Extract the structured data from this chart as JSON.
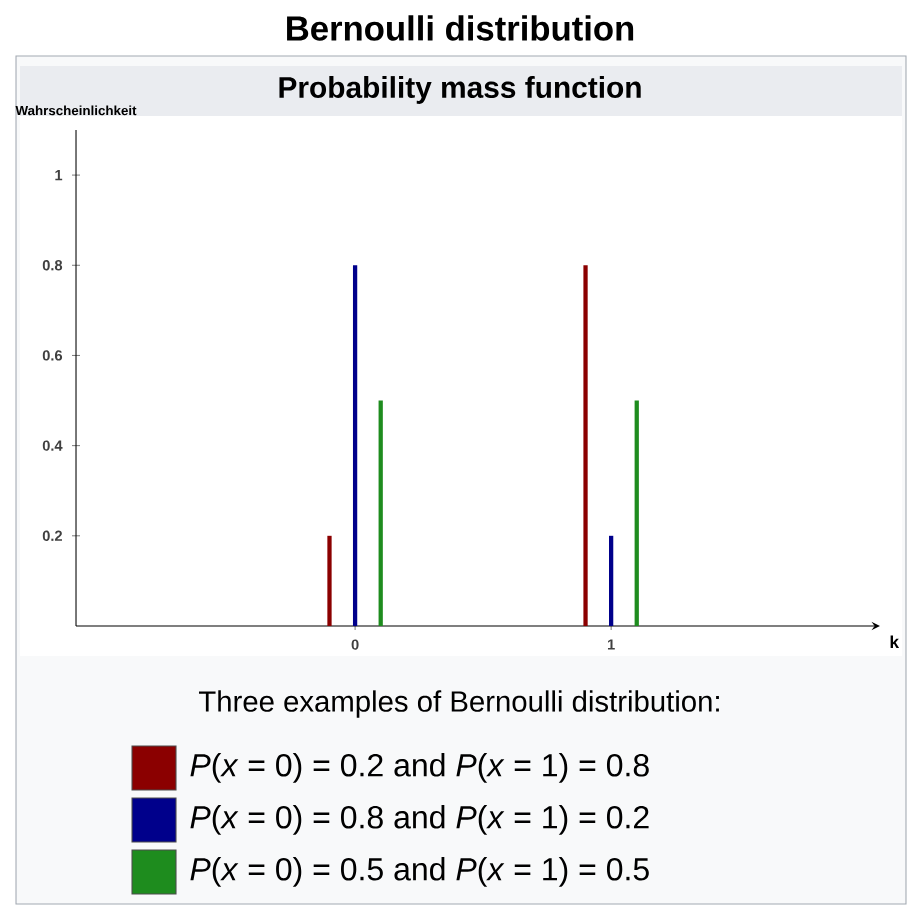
{
  "chart_data": {
    "type": "bar",
    "title": "Bernoulli distribution",
    "subtitle": "Probability mass function",
    "xlabel": "k",
    "ylabel": "Wahrscheinlichkeit",
    "legend_title": "Three examples of Bernoulli distribution:",
    "legend": "bottom",
    "xlim": [
      -1.09,
      2.05
    ],
    "ylim": [
      0,
      1.1
    ],
    "xticks": [
      0,
      1
    ],
    "yticks": [
      0.2,
      0.4,
      0.6,
      0.8,
      1
    ],
    "series": [
      {
        "name": "*P*(*x* = 0) = 0.2 and *P*(*x* = 1) = 0.8",
        "color": "#8b0000",
        "x": [
          -0.1,
          0.9
        ],
        "values": [
          0.2,
          0.8
        ]
      },
      {
        "name": "*P*(*x* = 0) = 0.8 and *P*(*x* = 1) = 0.2",
        "color": "#00008b",
        "x": [
          0,
          1
        ],
        "values": [
          0.8,
          0.2
        ]
      },
      {
        "name": "*P*(*x* = 0) = 0.5 and *P*(*x* = 1) = 0.5",
        "color": "#1e8c1e",
        "x": [
          0.1,
          1.1
        ],
        "values": [
          0.5,
          0.5
        ]
      }
    ]
  }
}
